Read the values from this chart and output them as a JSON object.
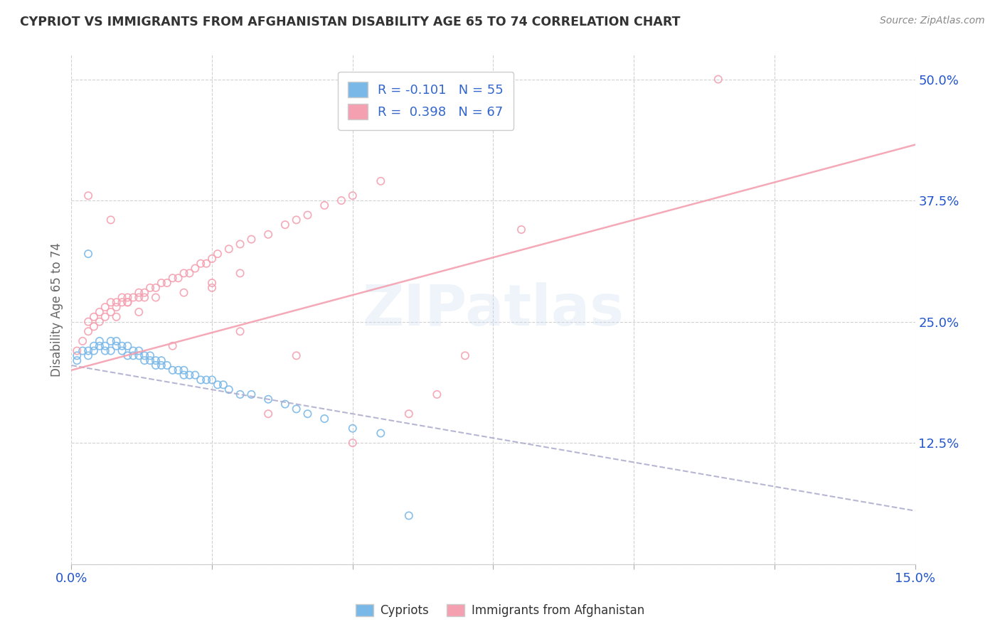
{
  "title": "CYPRIOT VS IMMIGRANTS FROM AFGHANISTAN DISABILITY AGE 65 TO 74 CORRELATION CHART",
  "source_text": "Source: ZipAtlas.com",
  "ylabel": "Disability Age 65 to 74",
  "xlim": [
    0.0,
    0.15
  ],
  "ylim": [
    0.0,
    0.525
  ],
  "xtick_positions": [
    0.0,
    0.025,
    0.05,
    0.075,
    0.1,
    0.125,
    0.15
  ],
  "xticklabels": [
    "0.0%",
    "",
    "",
    "",
    "",
    "",
    "15.0%"
  ],
  "ytick_positions": [
    0.0,
    0.125,
    0.25,
    0.375,
    0.5
  ],
  "yticklabels": [
    "",
    "12.5%",
    "25.0%",
    "37.5%",
    "50.0%"
  ],
  "cypriot_color": "#7ab8e8",
  "afghan_color": "#f4a0b0",
  "legend_text_color": "#3366cc",
  "background_color": "#ffffff",
  "grid_color": "#cccccc",
  "cypriot_x": [
    0.001,
    0.001,
    0.002,
    0.003,
    0.003,
    0.004,
    0.004,
    0.005,
    0.005,
    0.006,
    0.006,
    0.007,
    0.007,
    0.008,
    0.008,
    0.009,
    0.009,
    0.01,
    0.01,
    0.011,
    0.011,
    0.012,
    0.012,
    0.013,
    0.013,
    0.014,
    0.014,
    0.015,
    0.015,
    0.016,
    0.016,
    0.017,
    0.018,
    0.019,
    0.02,
    0.02,
    0.021,
    0.022,
    0.023,
    0.024,
    0.025,
    0.026,
    0.027,
    0.028,
    0.03,
    0.032,
    0.035,
    0.038,
    0.04,
    0.042,
    0.045,
    0.05,
    0.055,
    0.003,
    0.06
  ],
  "cypriot_y": [
    0.215,
    0.21,
    0.22,
    0.22,
    0.215,
    0.225,
    0.22,
    0.23,
    0.225,
    0.225,
    0.22,
    0.23,
    0.22,
    0.23,
    0.225,
    0.225,
    0.22,
    0.225,
    0.215,
    0.22,
    0.215,
    0.22,
    0.215,
    0.215,
    0.21,
    0.215,
    0.21,
    0.21,
    0.205,
    0.21,
    0.205,
    0.205,
    0.2,
    0.2,
    0.2,
    0.195,
    0.195,
    0.195,
    0.19,
    0.19,
    0.19,
    0.185,
    0.185,
    0.18,
    0.175,
    0.175,
    0.17,
    0.165,
    0.16,
    0.155,
    0.15,
    0.14,
    0.135,
    0.32,
    0.05
  ],
  "afghan_x": [
    0.001,
    0.002,
    0.003,
    0.003,
    0.004,
    0.004,
    0.005,
    0.005,
    0.006,
    0.006,
    0.007,
    0.007,
    0.008,
    0.008,
    0.009,
    0.009,
    0.01,
    0.01,
    0.011,
    0.012,
    0.012,
    0.013,
    0.013,
    0.014,
    0.015,
    0.016,
    0.017,
    0.018,
    0.019,
    0.02,
    0.021,
    0.022,
    0.023,
    0.024,
    0.025,
    0.026,
    0.028,
    0.03,
    0.032,
    0.035,
    0.038,
    0.04,
    0.042,
    0.045,
    0.048,
    0.05,
    0.055,
    0.003,
    0.008,
    0.01,
    0.015,
    0.02,
    0.025,
    0.03,
    0.035,
    0.04,
    0.007,
    0.012,
    0.018,
    0.025,
    0.03,
    0.05,
    0.06,
    0.065,
    0.07,
    0.08,
    0.115
  ],
  "afghan_y": [
    0.22,
    0.23,
    0.24,
    0.25,
    0.245,
    0.255,
    0.25,
    0.26,
    0.255,
    0.265,
    0.26,
    0.27,
    0.265,
    0.27,
    0.27,
    0.275,
    0.27,
    0.275,
    0.275,
    0.275,
    0.28,
    0.275,
    0.28,
    0.285,
    0.285,
    0.29,
    0.29,
    0.295,
    0.295,
    0.3,
    0.3,
    0.305,
    0.31,
    0.31,
    0.315,
    0.32,
    0.325,
    0.33,
    0.335,
    0.34,
    0.35,
    0.355,
    0.36,
    0.37,
    0.375,
    0.38,
    0.395,
    0.38,
    0.255,
    0.27,
    0.275,
    0.28,
    0.285,
    0.24,
    0.155,
    0.215,
    0.355,
    0.26,
    0.225,
    0.29,
    0.3,
    0.125,
    0.155,
    0.175,
    0.215,
    0.345,
    0.5
  ],
  "trend_cyp_slope": -1.0,
  "trend_cyp_intercept": 0.205,
  "trend_afg_slope": 1.55,
  "trend_afg_intercept": 0.2
}
